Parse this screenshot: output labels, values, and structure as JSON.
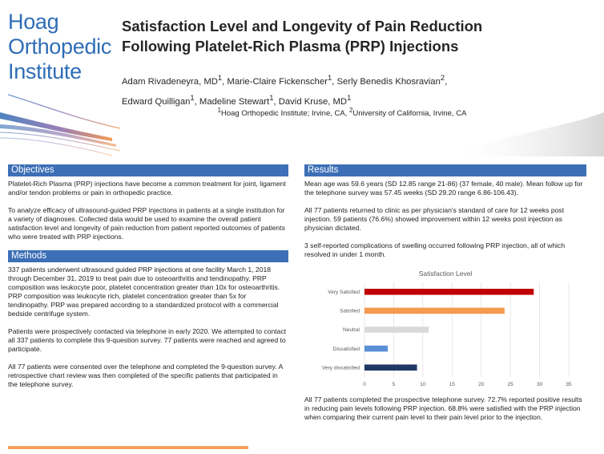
{
  "logo": {
    "lines": [
      "Hoag",
      "Orthopedic",
      "Institute"
    ]
  },
  "title": {
    "line1": "Satisfaction Level and Longevity of Pain Reduction",
    "line2": "Following Platelet-Rich Plasma (PRP) Injections"
  },
  "authors": {
    "a1": "Adam Rivadeneyra, MD",
    "s1": "1",
    "a2": ", Marie-Claire Fickenscher",
    "s2": "1",
    "a3": ", Serly Benedis Khosravian",
    "s3": "2",
    "a4": ",",
    "a5": "Edward Quilligan",
    "s5": "1",
    "a6": ", Madeline Stewart",
    "s6": "1",
    "a7": ", David Kruse, MD",
    "s7": "1"
  },
  "affiliation": {
    "s1": "1",
    "t1": "Hoag Orthopedic Institute; Irvine, CA, ",
    "s2": "2",
    "t2": "University of California, Irvine, CA"
  },
  "objectives": {
    "heading": "Objectives",
    "p1": "Platelet-Rich Plasma (PRP) injections have become a common treatment for joint, ligament and/or tendon problems or pain in orthopedic practice.",
    "p2": "To analyze efficacy of ultrasound-guided PRP injections in patients at a single institution for a variety of diagnoses.  Collected data would be used to examine the overall patient satisfaction level and longevity of pain reduction from patient reported outcomes of patients who were treated with PRP injections."
  },
  "methods": {
    "heading": "Methods",
    "p1": "337 patients underwent ultrasound guided PRP injections at one facility March 1, 2018 through December 31, 2019 to treat pain due to osteoarthritis and tendinopathy.  PRP composition was leukocyte poor, platelet concentration greater than 10x for osteoarthritis.  PRP composition was leukocyte rich, platelet concentration greater than 5x for tendinopathy.  PRP was prepared according to a standardized protocol with a commercial bedside centrifuge system.",
    "p2": "Patients were prospectively contacted via telephone in early 2020.  We attempted to contact all 337 patients to complete this 9-question survey.  77 patients were reached and agreed to participate.",
    "p3": "All 77 patients were consented over the telephone and completed the 9-question survey.  A retrospective chart review was then completed of the specific patients that participated in the telephone survey."
  },
  "results": {
    "heading": "Results",
    "p1": "Mean age was 59.6 years (SD 12.85 range 21-86) (37 female, 40 male).  Mean follow up for the telephone survey was 57.45 weeks (SD 29.20 range 6.86-106.43).",
    "p2": "All 77 patients returned to clinic as per physician's standard of care for 12 weeks post injection.  59 patients (76.6%) showed improvement within 12 weeks post injection as physician dictated.",
    "p3": "3 self-reported complications of swelling occurred following PRP injection, all of which resolved in under 1 month.",
    "p4": "All 77 patients completed the prospective telephone survey.  72.7% reported positive results in reducing pain levels following PRP injection.  68.8% were satisfied with the PRP injection when comparing their current pain level to their pain level prior to the injection."
  },
  "chart_data": {
    "type": "bar",
    "orientation": "horizontal",
    "title": "Satisfaction Level",
    "categories": [
      "Very Satisfied",
      "Satisfied",
      "Neutral",
      "Dissatisfied",
      "Very dissatisfied"
    ],
    "values": [
      29,
      24,
      11,
      4,
      9
    ],
    "colors": [
      "#c00000",
      "#f59a4e",
      "#d9d9d9",
      "#5b8fd6",
      "#1f3864"
    ],
    "xlim": [
      0,
      35
    ],
    "xticks": [
      "0",
      "5",
      "10",
      "15",
      "20",
      "25",
      "30",
      "35"
    ],
    "grid": true
  },
  "colors": {
    "accent": "#3c6fb6",
    "logo": "#2f6db5",
    "orange": "#f5a05a"
  }
}
